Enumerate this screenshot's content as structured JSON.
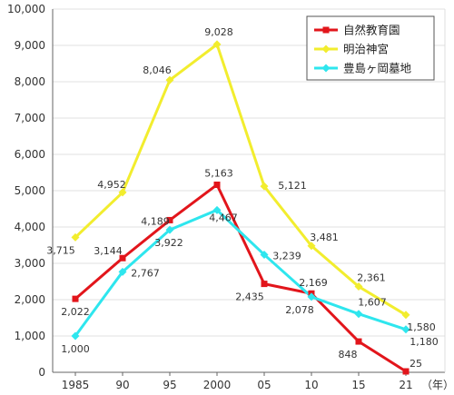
{
  "chart_data": {
    "type": "line",
    "categories": [
      "1985",
      "90",
      "95",
      "2000",
      "05",
      "10",
      "15",
      "21"
    ],
    "x_unit_label": "（年）",
    "ylim": [
      0,
      10000
    ],
    "y_ticks": [
      "0",
      "1,000",
      "2,000",
      "3,000",
      "4,000",
      "5,000",
      "6,000",
      "7,000",
      "8,000",
      "9,000",
      "10,000"
    ],
    "grid": "horizontal",
    "legend_position": "top-right",
    "series": [
      {
        "name": "自然教育園",
        "color": "#e2151b",
        "marker": "square",
        "values": [
          2022,
          3144,
          4189,
          5163,
          2435,
          2169,
          848,
          25
        ],
        "labels": [
          "2,022",
          "3,144",
          "4,189",
          "5,163",
          "2,435",
          "2,169",
          "848",
          "25"
        ]
      },
      {
        "name": "明治神宮",
        "color": "#f2ed2e",
        "marker": "diamond",
        "values": [
          3715,
          4952,
          8046,
          9028,
          5121,
          3481,
          2361,
          1580
        ],
        "labels": [
          "3,715",
          "4,952",
          "8,046",
          "9,028",
          "5,121",
          "3,481",
          "2,361",
          "1,580"
        ]
      },
      {
        "name": "豊島ヶ岡墓地",
        "color": "#2ee6ee",
        "marker": "diamond",
        "values": [
          1000,
          2767,
          3922,
          4467,
          3239,
          2078,
          1607,
          1180
        ],
        "labels": [
          "1,000",
          "2,767",
          "3,922",
          "4,467",
          "3,239",
          "2,078",
          "1,607",
          "1,180"
        ]
      }
    ]
  }
}
